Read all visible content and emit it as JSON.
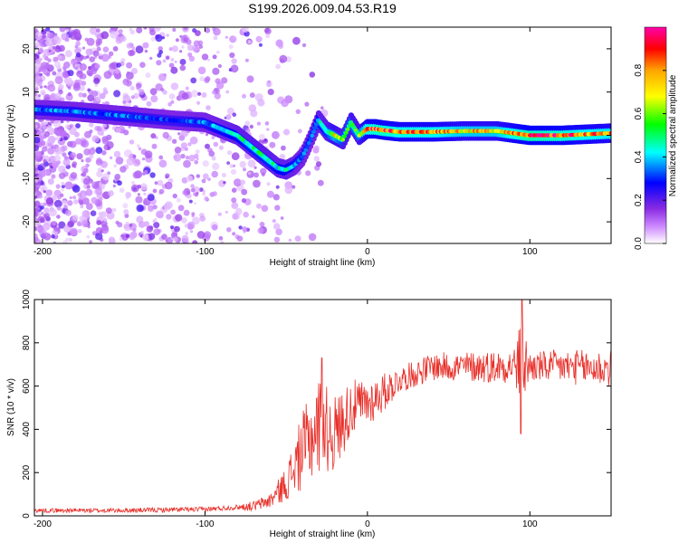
{
  "title": "S199.2026.009.04.53.R19",
  "chart_data": [
    {
      "type": "heatmap",
      "xlabel": "Height of straight line (km)",
      "ylabel": "Frequency (Hz)",
      "xlim": [
        -205,
        150
      ],
      "ylim": [
        -25,
        25
      ],
      "xticks": [
        -200,
        -100,
        0,
        100
      ],
      "yticks": [
        -20,
        -10,
        0,
        10,
        20
      ],
      "colorbar": {
        "label": "Normalized spectral amplitude",
        "range": [
          0,
          1
        ],
        "ticks": [
          0.0,
          0.2,
          0.4,
          0.6,
          0.8
        ],
        "colors": [
          "#ffffff",
          "#8a2be2",
          "#0000ff",
          "#00ffff",
          "#00ff00",
          "#ffff00",
          "#ff0000",
          "#ff00aa"
        ]
      },
      "ridge": {
        "x": [
          -205,
          -180,
          -150,
          -120,
          -100,
          -90,
          -80,
          -70,
          -60,
          -55,
          -50,
          -45,
          -40,
          -35,
          -30,
          -25,
          -20,
          -15,
          -10,
          -5,
          0,
          5,
          10,
          20,
          40,
          60,
          80,
          100,
          120,
          150
        ],
        "freq": [
          6,
          5.5,
          4.5,
          3.5,
          3,
          1.5,
          0,
          -3,
          -6,
          -7.5,
          -8,
          -7,
          -5,
          -1,
          3.5,
          1,
          0,
          -1,
          3,
          0,
          1.5,
          1.5,
          1.2,
          0.8,
          0.8,
          1,
          1,
          0,
          0,
          0.5
        ],
        "amp": [
          0.35,
          0.35,
          0.35,
          0.3,
          0.35,
          0.4,
          0.45,
          0.5,
          0.5,
          0.45,
          0.45,
          0.4,
          0.35,
          0.3,
          0.45,
          0.5,
          0.7,
          0.55,
          0.6,
          0.6,
          0.85,
          0.9,
          0.9,
          0.85,
          0.85,
          0.75,
          0.75,
          0.95,
          0.9,
          0.8
        ]
      }
    },
    {
      "type": "line",
      "xlabel": "Height of straight line (km)",
      "ylabel": "SNR (10 * v/v)",
      "xlim": [
        -205,
        150
      ],
      "ylim": [
        0,
        1000
      ],
      "xticks": [
        -200,
        -100,
        0,
        100
      ],
      "yticks": [
        0,
        200,
        400,
        600,
        800,
        1000
      ],
      "color": "#e8302a",
      "trend": {
        "x": [
          -205,
          -150,
          -100,
          -70,
          -60,
          -50,
          -40,
          -30,
          -20,
          -10,
          0,
          10,
          20,
          40,
          60,
          80,
          95,
          100,
          120,
          150
        ],
        "y": [
          25,
          25,
          30,
          45,
          70,
          150,
          300,
          420,
          380,
          500,
          520,
          570,
          630,
          690,
          690,
          690,
          700,
          690,
          690,
          680
        ]
      },
      "noise_amplitude": {
        "x": [
          -205,
          -80,
          -60,
          -50,
          -40,
          -30,
          -20,
          -10,
          0,
          10,
          20,
          60,
          90,
          95,
          100,
          150
        ],
        "y": [
          10,
          12,
          35,
          80,
          180,
          230,
          180,
          130,
          110,
          90,
          60,
          70,
          80,
          220,
          70,
          90
        ]
      }
    }
  ]
}
